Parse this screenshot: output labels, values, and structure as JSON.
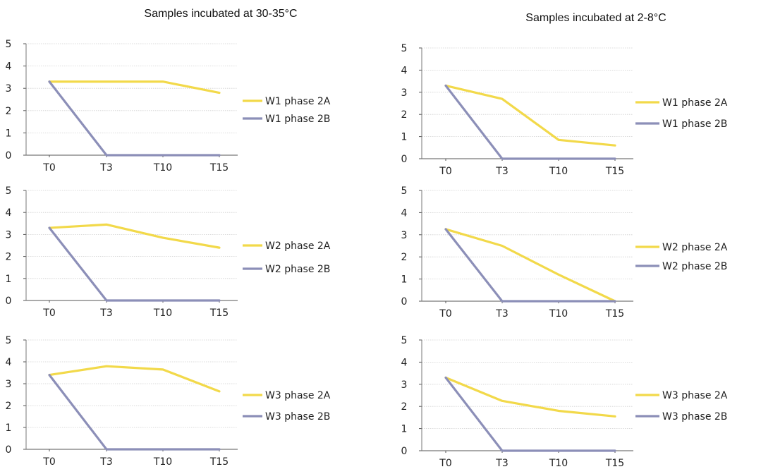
{
  "columns": [
    {
      "title": "Samples incubated at 30-35°C"
    },
    {
      "title": "Samples incubated at 2-8°C"
    }
  ],
  "colors": {
    "phase_2A": "#f2d94a",
    "phase_2B": "#8c8fb8"
  },
  "chart_data": [
    {
      "type": "line",
      "panel": "30-35°C W1",
      "categories": [
        "T0",
        "T3",
        "T10",
        "T15"
      ],
      "ylim": [
        0,
        5
      ],
      "yticks": [
        0,
        1,
        2,
        3,
        4,
        5
      ],
      "series": [
        {
          "name": "W1 phase 2A",
          "values": [
            3.3,
            3.3,
            3.3,
            2.8
          ]
        },
        {
          "name": "W1 phase 2B",
          "values": [
            3.3,
            0,
            0,
            0
          ]
        }
      ]
    },
    {
      "type": "line",
      "panel": "30-35°C W2",
      "categories": [
        "T0",
        "T3",
        "T10",
        "T15"
      ],
      "ylim": [
        0,
        5
      ],
      "yticks": [
        0,
        1,
        2,
        3,
        4,
        5
      ],
      "series": [
        {
          "name": "W2 phase 2A",
          "values": [
            3.3,
            3.45,
            2.85,
            2.4
          ]
        },
        {
          "name": "W2 phase 2B",
          "values": [
            3.3,
            0,
            0,
            0
          ]
        }
      ]
    },
    {
      "type": "line",
      "panel": "30-35°C W3",
      "categories": [
        "T0",
        "T3",
        "T10",
        "T15"
      ],
      "ylim": [
        0,
        5
      ],
      "yticks": [
        0,
        1,
        2,
        3,
        4,
        5
      ],
      "series": [
        {
          "name": "W3 phase 2A",
          "values": [
            3.4,
            3.8,
            3.65,
            2.65
          ]
        },
        {
          "name": "W3 phase 2B",
          "values": [
            3.4,
            0,
            0,
            0
          ]
        }
      ]
    },
    {
      "type": "line",
      "panel": "2-8°C W1",
      "categories": [
        "T0",
        "T3",
        "T10",
        "T15"
      ],
      "ylim": [
        0,
        5
      ],
      "yticks": [
        0,
        1,
        2,
        3,
        4,
        5
      ],
      "series": [
        {
          "name": "W1 phase 2A",
          "values": [
            3.3,
            2.7,
            0.85,
            0.6
          ]
        },
        {
          "name": "W1 phase 2B",
          "values": [
            3.3,
            0,
            0,
            0
          ]
        }
      ]
    },
    {
      "type": "line",
      "panel": "2-8°C W2",
      "categories": [
        "T0",
        "T3",
        "T10",
        "T15"
      ],
      "ylim": [
        0,
        5
      ],
      "yticks": [
        0,
        1,
        2,
        3,
        4,
        5
      ],
      "series": [
        {
          "name": "W2 phase 2A",
          "values": [
            3.25,
            2.5,
            1.2,
            0
          ]
        },
        {
          "name": "W2 phase 2B",
          "values": [
            3.25,
            0,
            0,
            0
          ]
        }
      ]
    },
    {
      "type": "line",
      "panel": "2-8°C W3",
      "categories": [
        "T0",
        "T3",
        "T10",
        "T15"
      ],
      "ylim": [
        0,
        5
      ],
      "yticks": [
        0,
        1,
        2,
        3,
        4,
        5
      ],
      "series": [
        {
          "name": "W3 phase 2A",
          "values": [
            3.3,
            2.25,
            1.8,
            1.55
          ]
        },
        {
          "name": "W3 phase 2B",
          "values": [
            3.3,
            0,
            0,
            0
          ]
        }
      ]
    }
  ]
}
